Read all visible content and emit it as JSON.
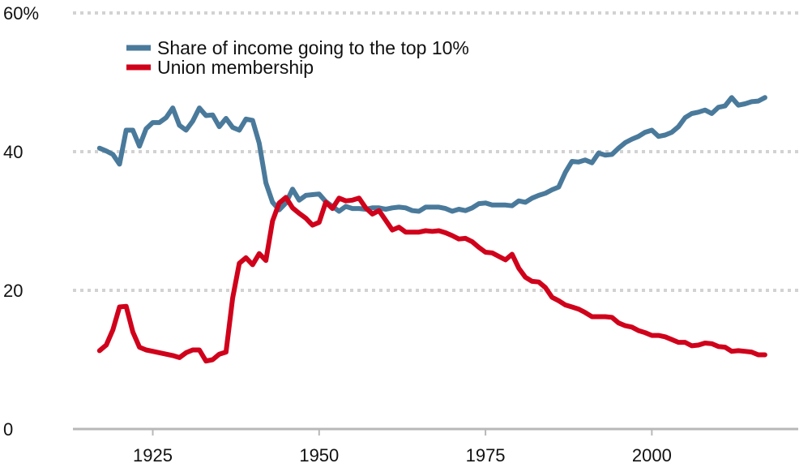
{
  "chart_data": {
    "type": "line",
    "title": "",
    "xlabel": "",
    "ylabel": "",
    "xlim": [
      1913,
      2022
    ],
    "ylim": [
      0,
      60
    ],
    "grid": true,
    "legend_position": "top-left",
    "x_ticks": [
      1925,
      1950,
      1975,
      2000
    ],
    "x_tick_labels": [
      "1925",
      "1950",
      "1975",
      "2000"
    ],
    "y_ticks": [
      0,
      20,
      40,
      60
    ],
    "y_tick_labels": [
      "0",
      "20",
      "40",
      "60%"
    ],
    "series": [
      {
        "name": "Share of income going to the top 10%",
        "color": "#4a7a9b",
        "x": [
          1917,
          1918,
          1919,
          1920,
          1921,
          1922,
          1923,
          1924,
          1925,
          1926,
          1927,
          1928,
          1929,
          1930,
          1931,
          1932,
          1933,
          1934,
          1935,
          1936,
          1937,
          1938,
          1939,
          1940,
          1941,
          1942,
          1943,
          1944,
          1945,
          1946,
          1947,
          1948,
          1949,
          1950,
          1951,
          1952,
          1953,
          1954,
          1955,
          1956,
          1957,
          1958,
          1959,
          1960,
          1961,
          1962,
          1963,
          1964,
          1965,
          1966,
          1967,
          1968,
          1969,
          1970,
          1971,
          1972,
          1973,
          1974,
          1975,
          1976,
          1977,
          1978,
          1979,
          1980,
          1981,
          1982,
          1983,
          1984,
          1985,
          1986,
          1987,
          1988,
          1989,
          1990,
          1991,
          1992,
          1993,
          1994,
          1995,
          1996,
          1997,
          1998,
          1999,
          2000,
          2001,
          2002,
          2003,
          2004,
          2005,
          2006,
          2007,
          2008,
          2009,
          2010,
          2011,
          2012,
          2013,
          2014,
          2015,
          2016,
          2017
        ],
        "values": [
          40.5,
          40.1,
          39.6,
          38.2,
          43.1,
          43.1,
          40.8,
          43.3,
          44.2,
          44.2,
          44.9,
          46.3,
          43.8,
          43.1,
          44.4,
          46.3,
          45.2,
          45.3,
          43.6,
          44.8,
          43.5,
          43.1,
          44.7,
          44.5,
          41.2,
          35.5,
          32.7,
          31.6,
          32.6,
          34.6,
          33.0,
          33.7,
          33.8,
          33.9,
          32.8,
          32.1,
          31.4,
          32.1,
          31.8,
          31.8,
          31.7,
          31.9,
          31.9,
          31.7,
          31.9,
          32.0,
          31.9,
          31.5,
          31.4,
          32.0,
          32.0,
          32.0,
          31.8,
          31.4,
          31.7,
          31.5,
          31.9,
          32.5,
          32.6,
          32.3,
          32.3,
          32.3,
          32.2,
          32.9,
          32.7,
          33.3,
          33.7,
          34.0,
          34.5,
          34.9,
          37.0,
          38.6,
          38.5,
          38.8,
          38.4,
          39.8,
          39.5,
          39.6,
          40.5,
          41.3,
          41.8,
          42.2,
          42.8,
          43.1,
          42.2,
          42.4,
          42.8,
          43.6,
          44.9,
          45.5,
          45.7,
          46.0,
          45.5,
          46.4,
          46.6,
          47.8,
          46.7,
          46.9,
          47.2,
          47.3,
          47.8
        ]
      },
      {
        "name": "Union membership",
        "color": "#d0021b",
        "x": [
          1917,
          1918,
          1919,
          1920,
          1921,
          1922,
          1923,
          1924,
          1925,
          1926,
          1927,
          1928,
          1929,
          1930,
          1931,
          1932,
          1933,
          1934,
          1935,
          1936,
          1937,
          1938,
          1939,
          1940,
          1941,
          1942,
          1943,
          1944,
          1945,
          1946,
          1947,
          1948,
          1949,
          1950,
          1951,
          1952,
          1953,
          1954,
          1955,
          1956,
          1957,
          1958,
          1959,
          1960,
          1961,
          1962,
          1963,
          1964,
          1965,
          1966,
          1967,
          1968,
          1969,
          1970,
          1971,
          1972,
          1973,
          1974,
          1975,
          1976,
          1977,
          1978,
          1979,
          1980,
          1981,
          1982,
          1983,
          1984,
          1985,
          1986,
          1987,
          1988,
          1989,
          1990,
          1991,
          1992,
          1993,
          1994,
          1995,
          1996,
          1997,
          1998,
          1999,
          2000,
          2001,
          2002,
          2003,
          2004,
          2005,
          2006,
          2007,
          2008,
          2009,
          2010,
          2011,
          2012,
          2013,
          2014,
          2015,
          2016,
          2017
        ],
        "values": [
          11.3,
          12.1,
          14.3,
          17.6,
          17.7,
          14.0,
          11.8,
          11.4,
          11.2,
          11.0,
          10.8,
          10.6,
          10.3,
          11.0,
          11.4,
          11.4,
          9.8,
          10.0,
          10.8,
          11.1,
          18.9,
          23.9,
          24.7,
          23.7,
          25.3,
          24.3,
          30.0,
          32.6,
          33.4,
          31.9,
          31.1,
          30.4,
          29.4,
          29.8,
          32.7,
          31.8,
          33.3,
          32.9,
          33.0,
          33.3,
          31.9,
          31.0,
          31.5,
          30.1,
          28.7,
          29.1,
          28.4,
          28.4,
          28.4,
          28.6,
          28.5,
          28.6,
          28.3,
          27.9,
          27.4,
          27.5,
          27.0,
          26.2,
          25.5,
          25.4,
          24.9,
          24.4,
          25.2,
          23.2,
          21.9,
          21.3,
          21.2,
          20.4,
          19.0,
          18.5,
          17.9,
          17.6,
          17.3,
          16.8,
          16.2,
          16.2,
          16.2,
          16.1,
          15.3,
          14.9,
          14.7,
          14.2,
          13.9,
          13.5,
          13.5,
          13.3,
          12.9,
          12.5,
          12.5,
          12.0,
          12.1,
          12.4,
          12.3,
          11.9,
          11.8,
          11.2,
          11.3,
          11.2,
          11.1,
          10.7,
          10.7
        ]
      }
    ]
  }
}
